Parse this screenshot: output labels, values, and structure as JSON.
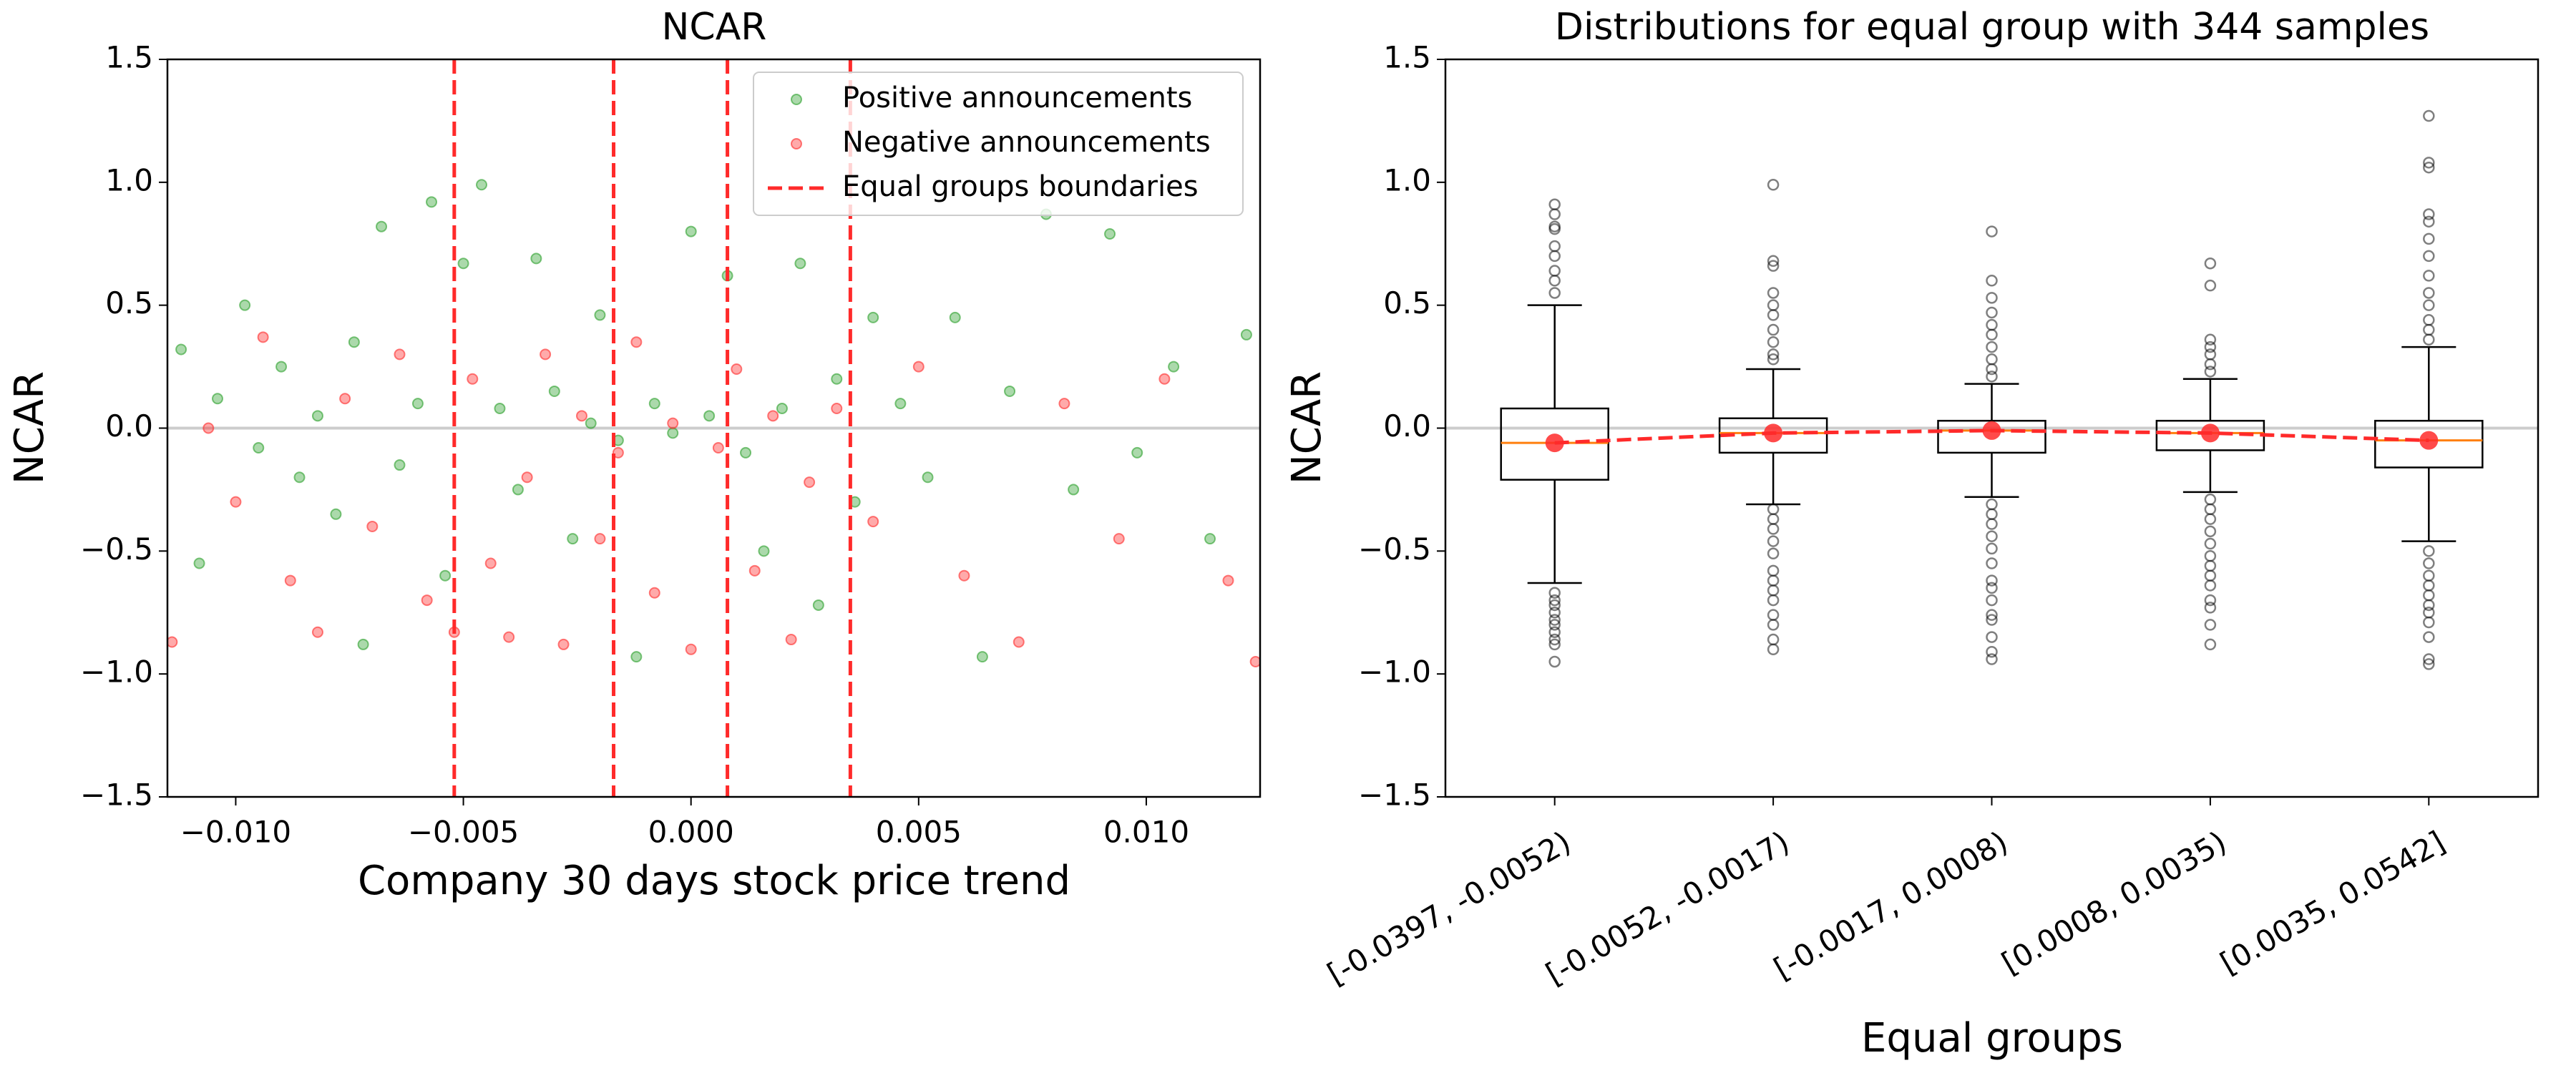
{
  "chart_data": [
    {
      "type": "scatter",
      "title": "NCAR",
      "xlabel": "Company 30 days stock price trend",
      "ylabel": "NCAR",
      "xlim": [
        -0.0115,
        0.0125
      ],
      "ylim": [
        -1.5,
        1.5
      ],
      "xticks": [
        {
          "value": -0.01,
          "label": "−0.010"
        },
        {
          "value": -0.005,
          "label": "−0.005"
        },
        {
          "value": 0,
          "label": "0.000"
        },
        {
          "value": 0.005,
          "label": "0.005"
        },
        {
          "value": 0.01,
          "label": "0.010"
        }
      ],
      "yticks": [
        {
          "value": -1.5,
          "label": "−1.5"
        },
        {
          "value": -1,
          "label": "−1.0"
        },
        {
          "value": -0.5,
          "label": "−0.5"
        },
        {
          "value": 0,
          "label": "0.0"
        },
        {
          "value": 0.5,
          "label": "0.5"
        },
        {
          "value": 1,
          "label": "1.0"
        },
        {
          "value": 1.5,
          "label": "1.5"
        }
      ],
      "legend": "upper right",
      "series": [
        {
          "name": "Positive announcements",
          "color": "#2ca02c",
          "x": [
            -0.0112,
            -0.0108,
            -0.0104,
            -0.0098,
            -0.0095,
            -0.009,
            -0.0086,
            -0.0082,
            -0.0078,
            -0.0074,
            -0.0072,
            -0.0068,
            -0.0064,
            -0.006,
            -0.0057,
            -0.0054,
            -0.005,
            -0.0046,
            -0.0042,
            -0.0038,
            -0.0034,
            -0.003,
            -0.0026,
            -0.0022,
            -0.002,
            -0.0016,
            -0.0012,
            -0.0008,
            -0.0004,
            0,
            0.0004,
            0.0008,
            0.0012,
            0.0016,
            0.002,
            0.0024,
            0.0028,
            0.0032,
            0.0036,
            0.004,
            0.0046,
            0.0052,
            0.0058,
            0.0064,
            0.007,
            0.0078,
            0.0084,
            0.0092,
            0.0098,
            0.0106,
            0.0114,
            0.0122
          ],
          "values": [
            0.32,
            -0.55,
            0.12,
            0.5,
            -0.08,
            0.25,
            -0.2,
            0.05,
            -0.35,
            0.35,
            -0.88,
            0.82,
            -0.15,
            0.1,
            0.92,
            -0.6,
            0.67,
            0.99,
            0.08,
            -0.25,
            0.69,
            0.15,
            -0.45,
            0.02,
            0.46,
            -0.05,
            -0.93,
            0.1,
            -0.02,
            0.8,
            0.05,
            0.62,
            -0.1,
            -0.5,
            0.08,
            0.67,
            -0.72,
            0.2,
            -0.3,
            0.45,
            0.1,
            -0.2,
            0.45,
            -0.93,
            0.15,
            0.87,
            -0.25,
            0.79,
            -0.1,
            0.25,
            -0.45,
            0.38
          ]
        },
        {
          "name": "Negative announcements",
          "color": "#ff2a2a",
          "x": [
            -0.0114,
            -0.0106,
            -0.01,
            -0.0094,
            -0.0088,
            -0.0082,
            -0.0076,
            -0.007,
            -0.0064,
            -0.0058,
            -0.0052,
            -0.0048,
            -0.0044,
            -0.004,
            -0.0036,
            -0.0032,
            -0.0028,
            -0.0024,
            -0.002,
            -0.0016,
            -0.0012,
            -0.0008,
            -0.0004,
            0,
            0.0006,
            0.001,
            0.0014,
            0.0018,
            0.0022,
            0.0026,
            0.0032,
            0.004,
            0.005,
            0.006,
            0.0072,
            0.0082,
            0.0094,
            0.0104,
            0.0118,
            0.0124
          ],
          "values": [
            -0.87,
            0,
            -0.3,
            0.37,
            -0.62,
            -0.83,
            0.12,
            -0.4,
            0.3,
            -0.7,
            -0.83,
            0.2,
            -0.55,
            -0.85,
            -0.2,
            0.3,
            -0.88,
            0.05,
            -0.45,
            -0.1,
            0.35,
            -0.67,
            0.02,
            -0.9,
            -0.08,
            0.24,
            -0.58,
            0.05,
            -0.86,
            -0.22,
            0.08,
            -0.38,
            0.25,
            -0.6,
            -0.87,
            0.1,
            -0.45,
            0.2,
            -0.62,
            -0.95
          ]
        }
      ],
      "boundaries": {
        "name": "Equal groups boundaries",
        "color": "#ff2a2a",
        "values": [
          -0.0052,
          -0.0017,
          0.0008,
          0.0035
        ]
      }
    },
    {
      "type": "box",
      "title": "Distributions for equal group with 344 samples",
      "xlabel": "Equal groups",
      "ylabel": "NCAR",
      "ylim": [
        -1.5,
        1.5
      ],
      "yticks": [
        {
          "value": -1.5,
          "label": "−1.5"
        },
        {
          "value": -1,
          "label": "−1.0"
        },
        {
          "value": -0.5,
          "label": "−0.5"
        },
        {
          "value": 0,
          "label": "0.0"
        },
        {
          "value": 0.5,
          "label": "0.5"
        },
        {
          "value": 1,
          "label": "1.0"
        },
        {
          "value": 1.5,
          "label": "1.5"
        }
      ],
      "categories": [
        "[-0.0397, -0.0052)",
        "[-0.0052, -0.0017)",
        "[-0.0017, 0.0008)",
        "[0.0008, 0.0035)",
        "[0.0035, 0.0542]"
      ],
      "median_color": "#ff7f0e",
      "mean_color": "#ff2a2a",
      "boxes": [
        {
          "whislo": -0.63,
          "q1": -0.21,
          "med": -0.06,
          "q3": 0.08,
          "whishi": 0.5,
          "mean": -0.06,
          "fliers": [
            0.91,
            0.87,
            0.82,
            0.81,
            0.74,
            0.7,
            0.64,
            0.6,
            0.55,
            -0.67,
            -0.7,
            -0.72,
            -0.75,
            -0.78,
            -0.8,
            -0.83,
            -0.86,
            -0.88,
            -0.95
          ]
        },
        {
          "whislo": -0.31,
          "q1": -0.1,
          "med": -0.02,
          "q3": 0.04,
          "whishi": 0.24,
          "mean": -0.02,
          "fliers": [
            0.99,
            0.68,
            0.66,
            0.55,
            0.5,
            0.46,
            0.4,
            0.35,
            0.3,
            0.28,
            -0.33,
            -0.37,
            -0.41,
            -0.46,
            -0.51,
            -0.58,
            -0.62,
            -0.66,
            -0.7,
            -0.76,
            -0.8,
            -0.86,
            -0.9
          ]
        },
        {
          "whislo": -0.28,
          "q1": -0.1,
          "med": -0.01,
          "q3": 0.03,
          "whishi": 0.18,
          "mean": -0.01,
          "fliers": [
            0.8,
            0.6,
            0.53,
            0.47,
            0.42,
            0.38,
            0.33,
            0.28,
            0.24,
            0.21,
            -0.31,
            -0.35,
            -0.39,
            -0.44,
            -0.49,
            -0.55,
            -0.62,
            -0.65,
            -0.7,
            -0.76,
            -0.78,
            -0.85,
            -0.91,
            -0.94
          ]
        },
        {
          "whislo": -0.26,
          "q1": -0.09,
          "med": -0.02,
          "q3": 0.03,
          "whishi": 0.2,
          "mean": -0.02,
          "fliers": [
            0.67,
            0.58,
            0.36,
            0.33,
            0.3,
            0.26,
            0.23,
            -0.29,
            -0.33,
            -0.37,
            -0.42,
            -0.47,
            -0.52,
            -0.56,
            -0.6,
            -0.64,
            -0.7,
            -0.73,
            -0.8,
            -0.88
          ]
        },
        {
          "whislo": -0.46,
          "q1": -0.16,
          "med": -0.05,
          "q3": 0.03,
          "whishi": 0.33,
          "mean": -0.05,
          "fliers": [
            1.27,
            1.08,
            1.06,
            0.87,
            0.84,
            0.77,
            0.7,
            0.62,
            0.55,
            0.5,
            0.44,
            0.4,
            0.36,
            -0.5,
            -0.55,
            -0.6,
            -0.64,
            -0.68,
            -0.72,
            -0.75,
            -0.79,
            -0.85,
            -0.94,
            -0.96
          ]
        }
      ]
    }
  ]
}
